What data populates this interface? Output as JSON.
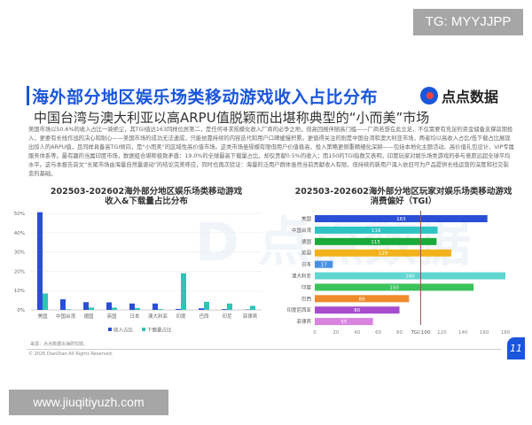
{
  "overlay": {
    "tg_label": "TG: MYYJJPP",
    "site_label": "www.jiuqitiyuzh.com"
  },
  "header": {
    "title": "海外部分地区娱乐场类移动游戏收入占比分布",
    "subtitle": "中国台湾与澳大利亚以高ARPU值脱颖而出堪称典型的“小而美”市场",
    "logo_text": "点点数据"
  },
  "body_text": "美国市场以50.6%的收入占比一骑绝尘，其TGI值达163同样位居第二，是任何寻求规模化收入厂商的必争之地，但高回报伴随高门槛——厂商若想在此立足，不仅需要有充足的资金储备支撑前期投入，更要有长线作战的决心和耐心——美国市场的成功无法速成，只能依靠持续的内容迭代和用户口碑缓慢积累。更值得关注的则是中国台湾和澳大利亚市场，两者均以高收入占比/低下载占比展现出惊人的ARPU值，且同样具备高TGI倾向，是“小而美”的区域性高价值市场。这类市场虽规模有限但用户价值极高，投入策略更侧重精细化深耕——包括本地化主题活动、高价值礼包设计、VIP专属服务体系等。最有趣的当属印度市场，数据组合堪称极致矛盾：19.0%的全球最高下载量占比，却仅贡献0.5%的收入；而150的TGI指数又表明，印度玩家对娱乐场类游戏的参与意愿远超全球平均水平。这与本报告前文“长尾市场由海量自然量驱动”的结论完美呼应，同时也再次验证：海量的泛用户群体虽然当前贡献收入有限，但持续的新用户涌入依旧可为产品提供长线运营的深度和社交裂变的基础。",
  "chart_data": [
    {
      "type": "bar",
      "title_line1": "202503-202602海外部分地区娱乐场类移动游戏",
      "title_line2": "收入&下载量占比分布",
      "categories": [
        "美国",
        "中国台湾",
        "德国",
        "英国",
        "日本",
        "澳大利亚",
        "印度",
        "巴西",
        "印尼",
        "菲律宾"
      ],
      "series": [
        {
          "name": "收入占比",
          "color": "#2a4fd6",
          "values": [
            50.6,
            5.5,
            4.0,
            3.9,
            3.3,
            3.3,
            0.5,
            0.8,
            0.4,
            0.2
          ]
        },
        {
          "name": "下载量占比",
          "color": "#2ec4b6",
          "values": [
            8.5,
            0.3,
            1.2,
            1.2,
            1.0,
            0.4,
            19.0,
            4.2,
            3.3,
            2.1
          ]
        }
      ],
      "yticks": [
        "0%",
        "10%",
        "20%",
        "30%",
        "40%",
        "50%"
      ],
      "ylim": [
        0,
        50
      ],
      "grid": true,
      "legend": "bottom"
    },
    {
      "type": "bar",
      "orientation": "horizontal",
      "title_line1": "202503-202602海外部分地区玩家对娱乐场类移动游戏",
      "title_line2": "消费偏好（TGI）",
      "categories": [
        "美国",
        "中国台湾",
        "德国",
        "英国",
        "日本",
        "澳大利亚",
        "印度",
        "巴西",
        "印度尼西亚",
        "菲律宾"
      ],
      "values": [
        163,
        116,
        115,
        129,
        17,
        180,
        150,
        89,
        80,
        55
      ],
      "colors": [
        "#2a4fd6",
        "#2ec4c4",
        "#1aaa3a",
        "#f2b21c",
        "#4a90e2",
        "#5fd6d0",
        "#3cc25a",
        "#f08a2c",
        "#a64ccf",
        "#d883e0"
      ],
      "xticks": [
        "0",
        "20",
        "40",
        "60",
        "80",
        "TGI:100",
        "120",
        "140",
        "160",
        "180"
      ],
      "xlim": [
        0,
        180
      ],
      "reference_line": {
        "value": 100,
        "label": "TGI:100",
        "color": "#8b5a5a"
      }
    }
  ],
  "footer": {
    "source": "来源：点点数据出海研究院。",
    "copyright": "© 2026 DianDian All Rights Reserved.",
    "page_number": "11"
  }
}
